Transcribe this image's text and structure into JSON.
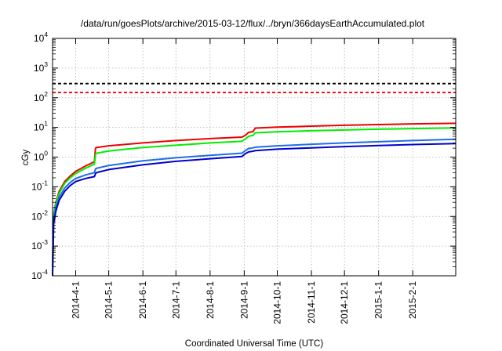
{
  "chart_data": {
    "type": "line",
    "title": "/data/run/goesPlots/archive/2015-03-12/flux/../bryn/366daysEarthAccumulated.plot",
    "xlabel": "Coordinated Universal Time (UTC)",
    "ylabel": "cGy",
    "yscale": "log",
    "ylim": [
      0.0001,
      10000
    ],
    "xlim": [
      "2014-03-11",
      "2015-03-12"
    ],
    "y_ticks": [
      {
        "base": "10",
        "exp": "-4",
        "value": 0.0001
      },
      {
        "base": "10",
        "exp": "-3",
        "value": 0.001
      },
      {
        "base": "10",
        "exp": "-2",
        "value": 0.01
      },
      {
        "base": "10",
        "exp": "-1",
        "value": 0.1
      },
      {
        "base": "10",
        "exp": "0",
        "value": 1
      },
      {
        "base": "10",
        "exp": "1",
        "value": 10
      },
      {
        "base": "10",
        "exp": "2",
        "value": 100
      },
      {
        "base": "10",
        "exp": "3",
        "value": 1000
      },
      {
        "base": "10",
        "exp": "4",
        "value": 10000
      }
    ],
    "x_ticks": [
      {
        "label": "2014-4-1",
        "date": "2014-04-01"
      },
      {
        "label": "2014-5-1",
        "date": "2014-05-01"
      },
      {
        "label": "2014-6-1",
        "date": "2014-06-01"
      },
      {
        "label": "2014-7-1",
        "date": "2014-07-01"
      },
      {
        "label": "2014-8-1",
        "date": "2014-08-01"
      },
      {
        "label": "2014-9-1",
        "date": "2014-09-01"
      },
      {
        "label": "2014-10-1",
        "date": "2014-10-01"
      },
      {
        "label": "2014-11-1",
        "date": "2014-11-01"
      },
      {
        "label": "2014-12-1",
        "date": "2014-12-01"
      },
      {
        "label": "2015-1-1",
        "date": "2015-01-01"
      },
      {
        "label": "2015-2-1",
        "date": "2015-02-01"
      }
    ],
    "grid": true,
    "hlines": [
      {
        "value": 300,
        "color": "#000000",
        "style": "dashed"
      },
      {
        "value": 150,
        "color": "#ff0000",
        "style": "dashed"
      }
    ],
    "series": [
      {
        "color": "#ee0000",
        "points": [
          [
            "2014-03-11",
            0.0003
          ],
          [
            "2014-03-12",
            0.012
          ],
          [
            "2014-03-14",
            0.03
          ],
          [
            "2014-03-17",
            0.07
          ],
          [
            "2014-03-22",
            0.15
          ],
          [
            "2014-03-27",
            0.23
          ],
          [
            "2014-04-01",
            0.33
          ],
          [
            "2014-04-10",
            0.5
          ],
          [
            "2014-04-18",
            0.7
          ],
          [
            "2014-04-19",
            2.0
          ],
          [
            "2014-04-20",
            2.1
          ],
          [
            "2014-05-01",
            2.4
          ],
          [
            "2014-06-01",
            3.0
          ],
          [
            "2014-07-01",
            3.6
          ],
          [
            "2014-08-01",
            4.2
          ],
          [
            "2014-08-30",
            4.7
          ],
          [
            "2014-09-02",
            5.4
          ],
          [
            "2014-09-05",
            6.8
          ],
          [
            "2014-09-09",
            7.2
          ],
          [
            "2014-09-11",
            9.5
          ],
          [
            "2014-10-01",
            10.2
          ],
          [
            "2014-11-01",
            11.0
          ],
          [
            "2014-12-01",
            11.8
          ],
          [
            "2015-01-01",
            12.5
          ],
          [
            "2015-02-01",
            13.1
          ],
          [
            "2015-03-12",
            13.8
          ]
        ]
      },
      {
        "color": "#00ee00",
        "points": [
          [
            "2014-03-11",
            0.0003
          ],
          [
            "2014-03-12",
            0.011
          ],
          [
            "2014-03-14",
            0.027
          ],
          [
            "2014-03-17",
            0.06
          ],
          [
            "2014-03-22",
            0.13
          ],
          [
            "2014-03-27",
            0.2
          ],
          [
            "2014-04-01",
            0.28
          ],
          [
            "2014-04-10",
            0.42
          ],
          [
            "2014-04-18",
            0.58
          ],
          [
            "2014-04-19",
            1.25
          ],
          [
            "2014-04-20",
            1.35
          ],
          [
            "2014-05-01",
            1.6
          ],
          [
            "2014-06-01",
            2.1
          ],
          [
            "2014-07-01",
            2.5
          ],
          [
            "2014-08-01",
            3.0
          ],
          [
            "2014-08-30",
            3.4
          ],
          [
            "2014-09-02",
            4.1
          ],
          [
            "2014-09-05",
            5.0
          ],
          [
            "2014-09-09",
            5.4
          ],
          [
            "2014-09-11",
            6.6
          ],
          [
            "2014-10-01",
            7.1
          ],
          [
            "2014-11-01",
            7.7
          ],
          [
            "2014-12-01",
            8.2
          ],
          [
            "2015-01-01",
            8.7
          ],
          [
            "2015-02-01",
            9.1
          ],
          [
            "2015-03-12",
            9.6
          ]
        ]
      },
      {
        "color": "#1e6ee6",
        "points": [
          [
            "2014-03-11",
            0.0002
          ],
          [
            "2014-03-12",
            0.008
          ],
          [
            "2014-03-14",
            0.02
          ],
          [
            "2014-03-17",
            0.045
          ],
          [
            "2014-03-22",
            0.09
          ],
          [
            "2014-03-27",
            0.14
          ],
          [
            "2014-04-01",
            0.19
          ],
          [
            "2014-04-10",
            0.25
          ],
          [
            "2014-04-18",
            0.3
          ],
          [
            "2014-04-19",
            0.4
          ],
          [
            "2014-04-20",
            0.42
          ],
          [
            "2014-05-01",
            0.52
          ],
          [
            "2014-06-01",
            0.75
          ],
          [
            "2014-07-01",
            0.95
          ],
          [
            "2014-08-01",
            1.15
          ],
          [
            "2014-08-30",
            1.35
          ],
          [
            "2014-09-02",
            1.65
          ],
          [
            "2014-09-05",
            1.95
          ],
          [
            "2014-09-09",
            2.05
          ],
          [
            "2014-09-11",
            2.15
          ],
          [
            "2014-10-01",
            2.4
          ],
          [
            "2014-11-01",
            2.7
          ],
          [
            "2014-12-01",
            3.0
          ],
          [
            "2015-01-01",
            3.3
          ],
          [
            "2015-02-01",
            3.6
          ],
          [
            "2015-03-12",
            4.0
          ]
        ]
      },
      {
        "color": "#0000cc",
        "points": [
          [
            "2014-03-11",
            0.0001
          ],
          [
            "2014-03-12",
            0.006
          ],
          [
            "2014-03-14",
            0.015
          ],
          [
            "2014-03-17",
            0.035
          ],
          [
            "2014-03-22",
            0.07
          ],
          [
            "2014-03-27",
            0.11
          ],
          [
            "2014-04-01",
            0.15
          ],
          [
            "2014-04-10",
            0.19
          ],
          [
            "2014-04-18",
            0.22
          ],
          [
            "2014-04-19",
            0.28
          ],
          [
            "2014-04-20",
            0.3
          ],
          [
            "2014-05-01",
            0.38
          ],
          [
            "2014-06-01",
            0.55
          ],
          [
            "2014-07-01",
            0.72
          ],
          [
            "2014-08-01",
            0.88
          ],
          [
            "2014-08-30",
            1.05
          ],
          [
            "2014-09-02",
            1.3
          ],
          [
            "2014-09-05",
            1.5
          ],
          [
            "2014-09-09",
            1.58
          ],
          [
            "2014-09-11",
            1.65
          ],
          [
            "2014-10-01",
            1.85
          ],
          [
            "2014-11-01",
            2.05
          ],
          [
            "2014-12-01",
            2.25
          ],
          [
            "2015-01-01",
            2.45
          ],
          [
            "2015-02-01",
            2.65
          ],
          [
            "2015-03-12",
            2.85
          ]
        ]
      }
    ]
  }
}
